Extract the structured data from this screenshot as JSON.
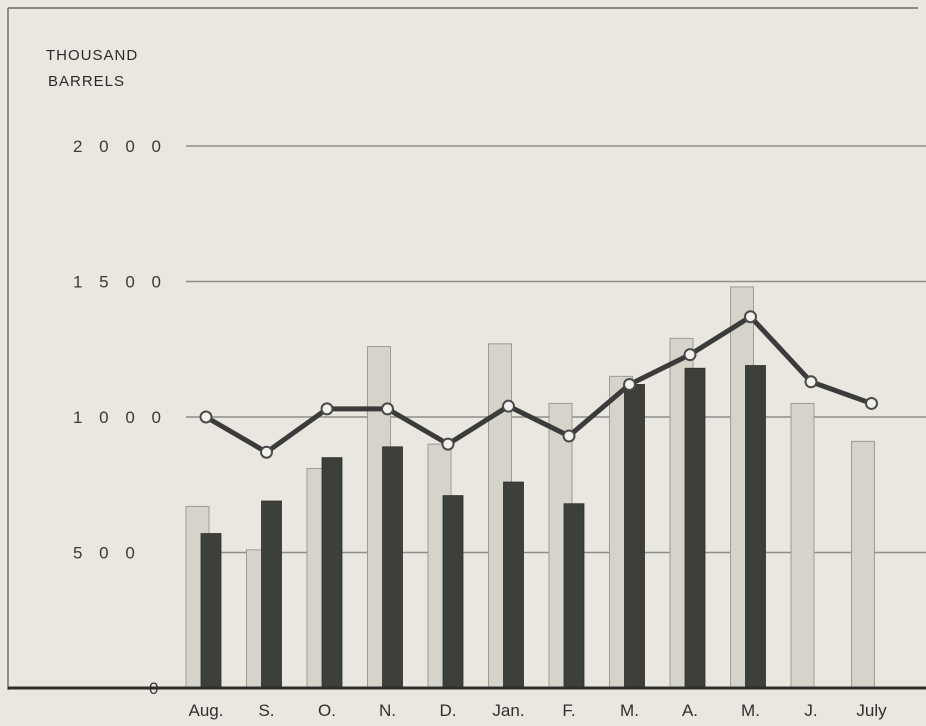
{
  "chart_data": {
    "type": "bar",
    "ylabel_lines": [
      "THOUSAND",
      "BARRELS"
    ],
    "ylim": [
      0,
      2000
    ],
    "yticks": [
      {
        "value": 0,
        "label": "0"
      },
      {
        "value": 500,
        "label": "5 0 0"
      },
      {
        "value": 1000,
        "label": "1 0 0 0"
      },
      {
        "value": 1500,
        "label": "1 5 0 0"
      },
      {
        "value": 2000,
        "label": "2 0 0 0"
      }
    ],
    "categories": [
      "Aug.",
      "S.",
      "O.",
      "N.",
      "D.",
      "Jan.",
      "F.",
      "M.",
      "A.",
      "M.",
      "J.",
      "July"
    ],
    "grid": true,
    "series": [
      {
        "kind": "bar",
        "style": "light-stippled",
        "values": [
          670,
          510,
          810,
          1260,
          900,
          1270,
          1050,
          1150,
          1290,
          1480,
          1050,
          910
        ]
      },
      {
        "kind": "bar",
        "style": "dark",
        "values": [
          570,
          690,
          850,
          890,
          710,
          760,
          680,
          1120,
          1180,
          1190,
          null,
          null
        ]
      },
      {
        "kind": "line",
        "style": "line-with-open-markers",
        "values": [
          1000,
          870,
          1030,
          1030,
          900,
          1040,
          930,
          1120,
          1230,
          1370,
          1130,
          1050
        ]
      }
    ],
    "colors": {
      "background": "#e9e7df",
      "light_bar": "#d6d3cb",
      "dark_bar": "#3d3f3b",
      "line": "#3b3b3b",
      "grid": "#8d8d8d"
    }
  }
}
